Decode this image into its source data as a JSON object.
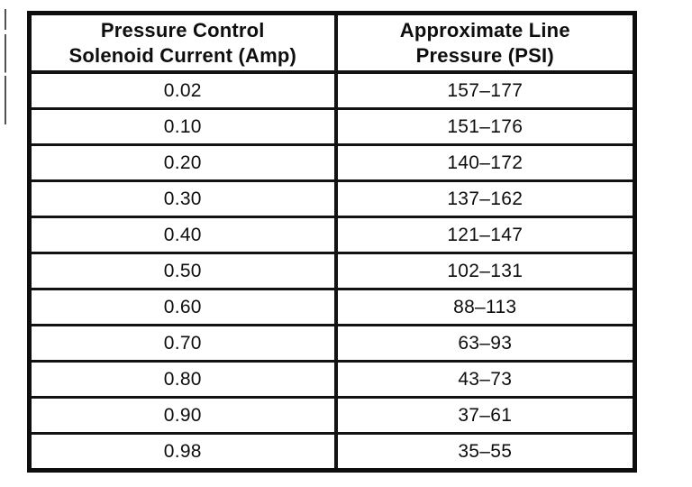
{
  "document": {
    "background_color": "#ffffff",
    "ink_color": "#0e0e0e"
  },
  "table": {
    "headers": [
      "Pressure Control\nSolenoid Current (Amp)",
      "Approximate Line\nPressure (PSI)"
    ],
    "rows": [
      [
        "0.02",
        "157–177"
      ],
      [
        "0.10",
        "151–176"
      ],
      [
        "0.20",
        "140–172"
      ],
      [
        "0.30",
        "137–162"
      ],
      [
        "0.40",
        "121–147"
      ],
      [
        "0.50",
        "102–131"
      ],
      [
        "0.60",
        "88–113"
      ],
      [
        "0.70",
        "63–93"
      ],
      [
        "0.80",
        "43–73"
      ],
      [
        "0.90",
        "37–61"
      ],
      [
        "0.98",
        "35–55"
      ]
    ]
  },
  "chart_data": {
    "type": "table",
    "columns": [
      "Pressure Control Solenoid Current (Amp)",
      "Approximate Line Pressure (PSI)"
    ],
    "rows": [
      [
        "0.02",
        "157–177"
      ],
      [
        "0.10",
        "151–176"
      ],
      [
        "0.20",
        "140–172"
      ],
      [
        "0.30",
        "137–162"
      ],
      [
        "0.40",
        "121–147"
      ],
      [
        "0.50",
        "102–131"
      ],
      [
        "0.60",
        "88–113"
      ],
      [
        "0.70",
        "63–93"
      ],
      [
        "0.80",
        "43–73"
      ],
      [
        "0.90",
        "37–61"
      ],
      [
        "0.98",
        "35–55"
      ]
    ]
  }
}
